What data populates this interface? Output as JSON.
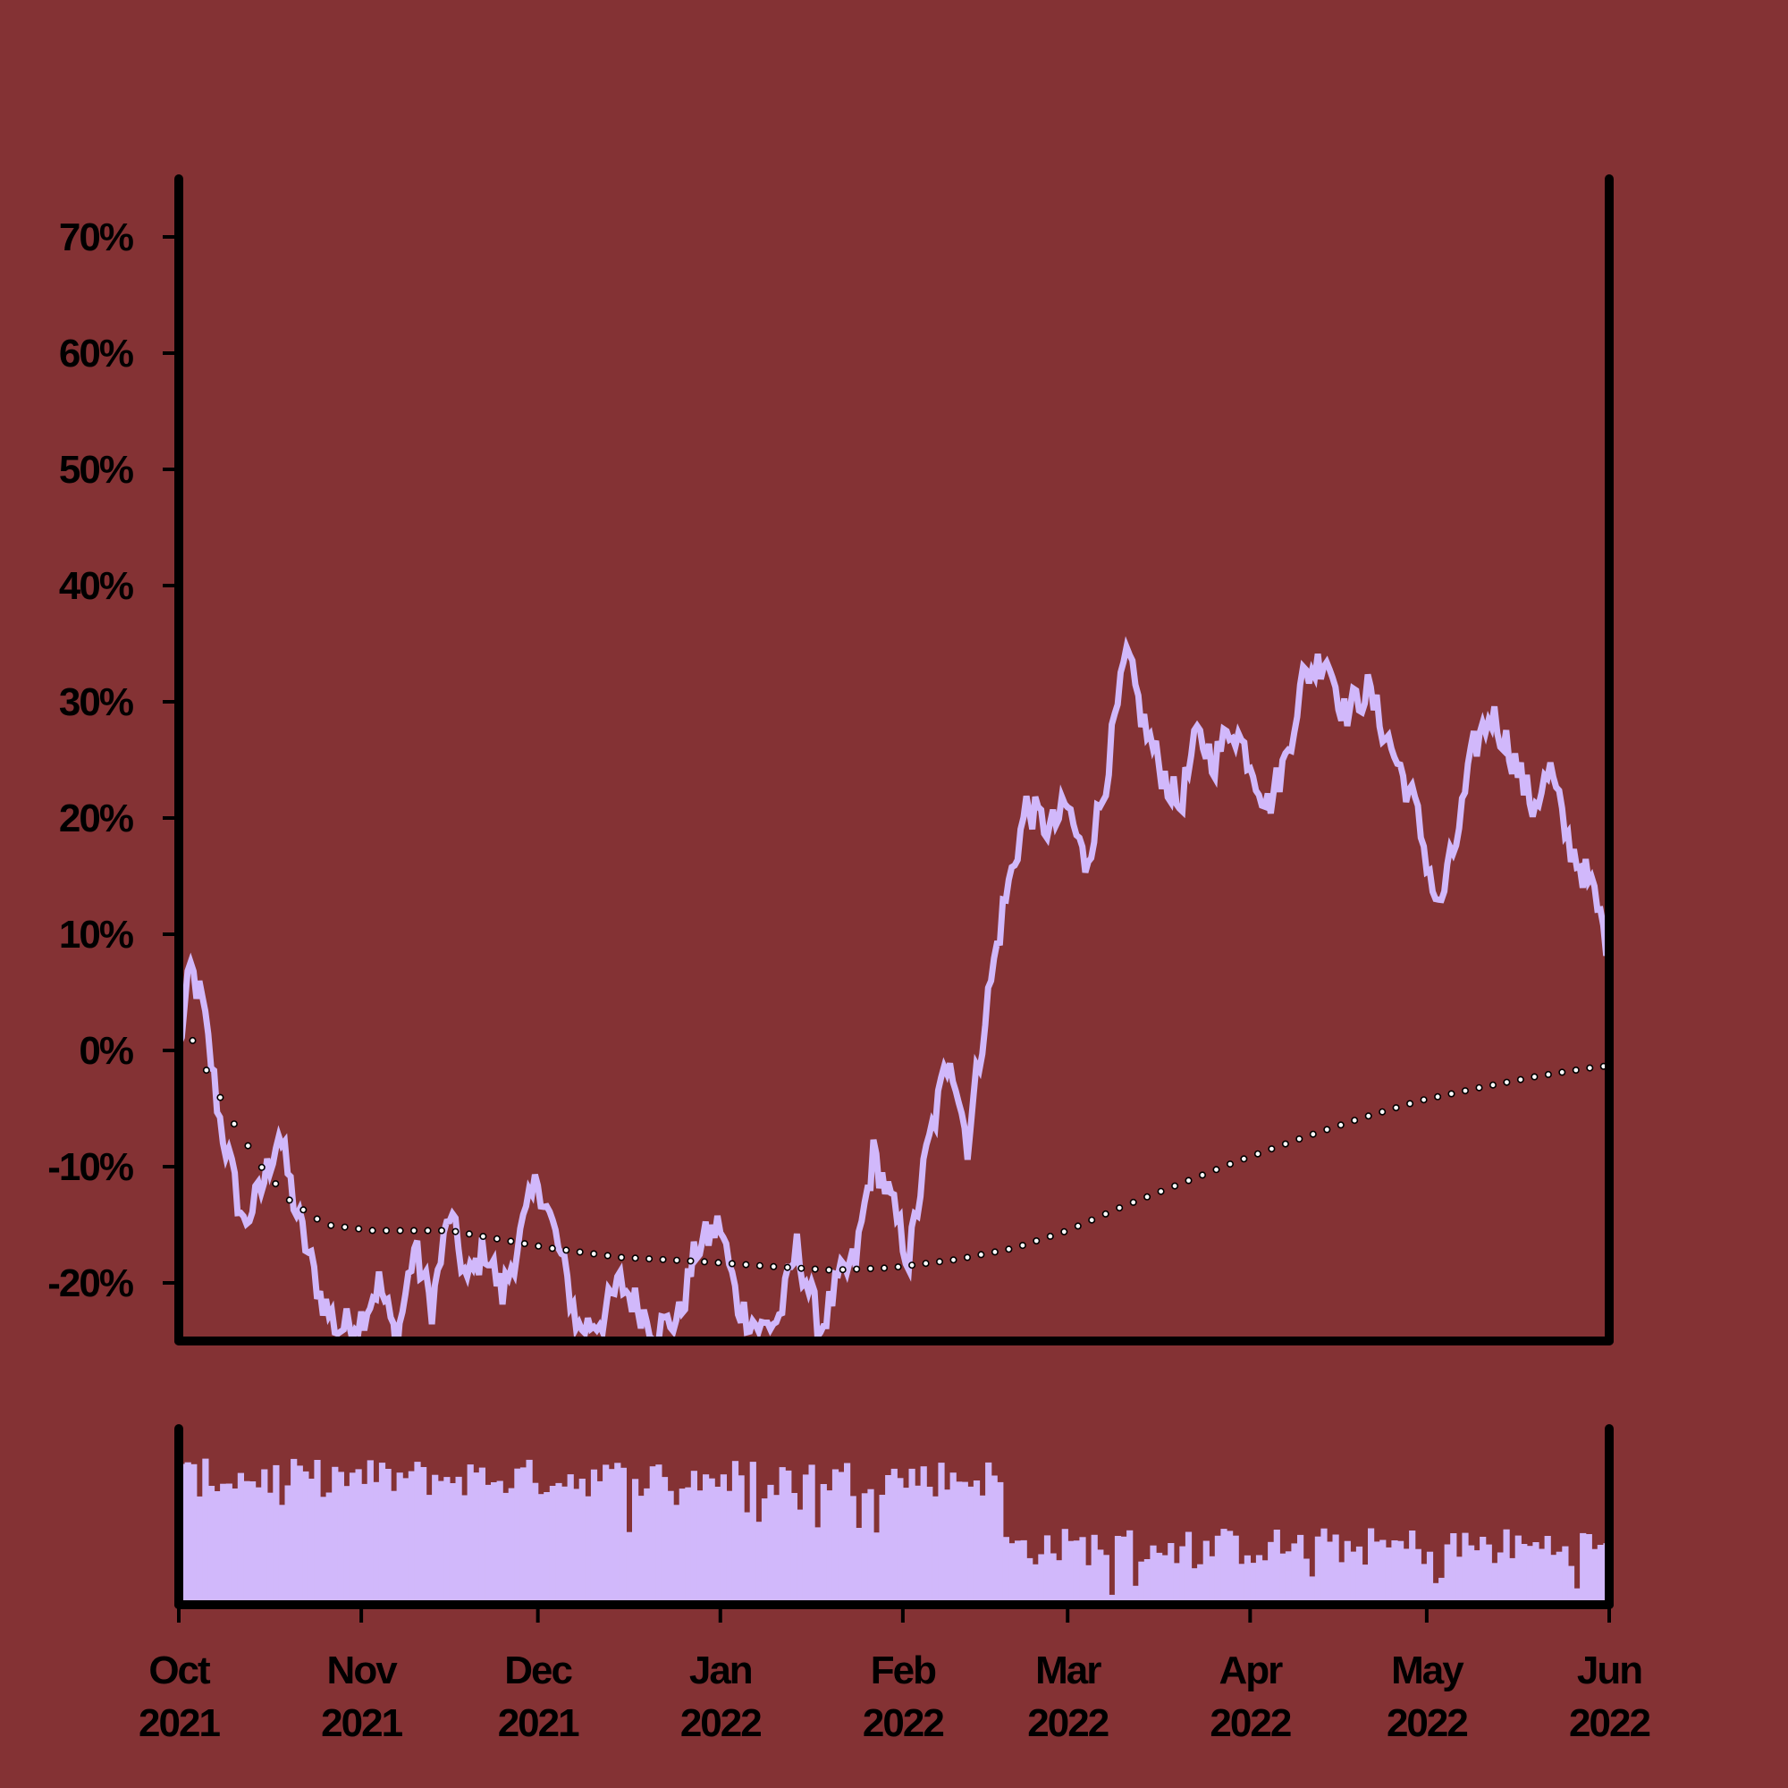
{
  "colors": {
    "background": "#843234",
    "series": "#d1b8fb",
    "axis": "#000000",
    "trend_marker_fill": "#ffffff",
    "trend_marker_stroke": "#000000"
  },
  "chart_data": [
    {
      "type": "line",
      "panel": "price",
      "x_start": "2021-10-01",
      "x_end": "2022-06-01",
      "ylim": [
        -25,
        75
      ],
      "y_ticks": [
        -20,
        -10,
        0,
        10,
        20,
        30,
        40,
        50,
        60,
        70
      ],
      "y_tick_labels": [
        "-20%",
        "-10%",
        "0%",
        "10%",
        "20%",
        "30%",
        "40%",
        "50%",
        "60%",
        "70%"
      ],
      "y_unit": "%",
      "grid": false,
      "series": [
        {
          "style": "line",
          "values_note": "daily % change from 2021-10-01, keyframes",
          "points": [
            [
              "2021-10-01",
              0
            ],
            [
              "2021-10-03",
              7
            ],
            [
              "2021-10-05",
              4
            ],
            [
              "2021-10-08",
              -6
            ],
            [
              "2021-10-12",
              -15
            ],
            [
              "2021-10-15",
              -12
            ],
            [
              "2021-10-18",
              -7
            ],
            [
              "2021-10-21",
              -14
            ],
            [
              "2021-10-25",
              -21
            ],
            [
              "2021-10-28",
              -24
            ],
            [
              "2021-11-01",
              -23
            ],
            [
              "2021-11-04",
              -20
            ],
            [
              "2021-11-07",
              -25
            ],
            [
              "2021-11-10",
              -17
            ],
            [
              "2021-11-13",
              -22
            ],
            [
              "2021-11-16",
              -14
            ],
            [
              "2021-11-19",
              -20
            ],
            [
              "2021-11-22",
              -17
            ],
            [
              "2021-11-25",
              -21
            ],
            [
              "2021-11-28",
              -16
            ],
            [
              "2021-12-01",
              -11
            ],
            [
              "2021-12-04",
              -16
            ],
            [
              "2021-12-08",
              -24
            ],
            [
              "2021-12-12",
              -23
            ],
            [
              "2021-12-15",
              -20
            ],
            [
              "2021-12-18",
              -22
            ],
            [
              "2021-12-21",
              -24
            ],
            [
              "2021-12-25",
              -23
            ],
            [
              "2021-12-28",
              -17
            ],
            [
              "2022-01-01",
              -15
            ],
            [
              "2022-01-04",
              -22
            ],
            [
              "2022-01-08",
              -24
            ],
            [
              "2022-01-11",
              -23
            ],
            [
              "2022-01-14",
              -17
            ],
            [
              "2022-01-18",
              -24
            ],
            [
              "2022-01-21",
              -20
            ],
            [
              "2022-01-24",
              -18
            ],
            [
              "2022-01-27",
              -9
            ],
            [
              "2022-01-30",
              -13
            ],
            [
              "2022-02-02",
              -18
            ],
            [
              "2022-02-05",
              -9
            ],
            [
              "2022-02-09",
              0
            ],
            [
              "2022-02-12",
              -8
            ],
            [
              "2022-02-15",
              3
            ],
            [
              "2022-02-18",
              12
            ],
            [
              "2022-02-22",
              21
            ],
            [
              "2022-02-26",
              19
            ],
            [
              "2022-03-01",
              21
            ],
            [
              "2022-03-04",
              16
            ],
            [
              "2022-03-07",
              22
            ],
            [
              "2022-03-11",
              34
            ],
            [
              "2022-03-14",
              28
            ],
            [
              "2022-03-17",
              24
            ],
            [
              "2022-03-20",
              21
            ],
            [
              "2022-03-23",
              27
            ],
            [
              "2022-03-26",
              25
            ],
            [
              "2022-03-29",
              28
            ],
            [
              "2022-04-01",
              25
            ],
            [
              "2022-04-04",
              21
            ],
            [
              "2022-04-07",
              25
            ],
            [
              "2022-04-10",
              32
            ],
            [
              "2022-04-14",
              34
            ],
            [
              "2022-04-17",
              29
            ],
            [
              "2022-04-21",
              31
            ],
            [
              "2022-04-25",
              26
            ],
            [
              "2022-04-29",
              21
            ],
            [
              "2022-05-03",
              12
            ],
            [
              "2022-05-06",
              18
            ],
            [
              "2022-05-09",
              26
            ],
            [
              "2022-05-12",
              29
            ],
            [
              "2022-05-15",
              26
            ],
            [
              "2022-05-19",
              21
            ],
            [
              "2022-05-22",
              24
            ],
            [
              "2022-05-25",
              18
            ],
            [
              "2022-05-29",
              14
            ],
            [
              "2022-06-02",
              7
            ],
            [
              "2022-06-05",
              4
            ],
            [
              "2022-06-08",
              10
            ],
            [
              "2022-06-12",
              18
            ],
            [
              "2022-06-15",
              14
            ],
            [
              "2022-06-18",
              17
            ],
            [
              "2022-06-22",
              13
            ],
            [
              "2022-06-26",
              7
            ],
            [
              "2022-06-29",
              0
            ],
            [
              "2022-07-01",
              -3
            ]
          ]
        },
        {
          "style": "dotted-trend",
          "points": [
            [
              "2021-10-01",
              3.5
            ],
            [
              "2021-10-05",
              -1
            ],
            [
              "2021-10-10",
              -6
            ],
            [
              "2021-10-15",
              -10
            ],
            [
              "2021-10-20",
              -13
            ],
            [
              "2021-10-26",
              -15
            ],
            [
              "2021-11-03",
              -15.5
            ],
            [
              "2021-11-10",
              -15.5
            ],
            [
              "2021-11-16",
              -15.5
            ],
            [
              "2021-11-24",
              -16.2
            ],
            [
              "2021-12-03",
              -17
            ],
            [
              "2021-12-15",
              -17.8
            ],
            [
              "2021-12-30",
              -18.2
            ],
            [
              "2022-01-10",
              -18.6
            ],
            [
              "2022-01-20",
              -18.9
            ],
            [
              "2022-01-30",
              -18.7
            ],
            [
              "2022-02-10",
              -18
            ],
            [
              "2022-02-20",
              -17
            ],
            [
              "2022-03-01",
              -15.5
            ],
            [
              "2022-03-10",
              -13.5
            ],
            [
              "2022-03-20",
              -11.5
            ],
            [
              "2022-03-30",
              -9.5
            ],
            [
              "2022-04-10",
              -7.5
            ],
            [
              "2022-04-20",
              -5.8
            ],
            [
              "2022-04-30",
              -4.3
            ],
            [
              "2022-05-10",
              -3.2
            ],
            [
              "2022-05-20",
              -2.2
            ],
            [
              "2022-05-30",
              -1.4
            ],
            [
              "2022-06-10",
              -1.1
            ],
            [
              "2022-06-20",
              -0.5
            ],
            [
              "2022-06-30",
              0
            ]
          ]
        }
      ]
    },
    {
      "type": "bar",
      "panel": "volume",
      "x_start": "2021-10-01",
      "x_end": "2022-06-01",
      "y_ticks": [],
      "segments": [
        {
          "from": "2021-10-01",
          "to": "2022-02-18",
          "level": 0.72
        },
        {
          "from": "2022-02-18",
          "to": "2022-07-01",
          "level": 0.33
        }
      ],
      "x_ticks": [
        {
          "month": "Oct",
          "year": "2021",
          "date": "2021-10-01"
        },
        {
          "month": "Nov",
          "year": "2021",
          "date": "2021-11-01"
        },
        {
          "month": "Dec",
          "year": "2021",
          "date": "2021-12-01"
        },
        {
          "month": "Jan",
          "year": "2022",
          "date": "2022-01-01"
        },
        {
          "month": "Feb",
          "year": "2022",
          "date": "2022-02-01"
        },
        {
          "month": "Mar",
          "year": "2022",
          "date": "2022-03-01"
        },
        {
          "month": "Apr",
          "year": "2022",
          "date": "2022-04-01"
        },
        {
          "month": "May",
          "year": "2022",
          "date": "2022-05-01"
        },
        {
          "month": "Jun",
          "year": "2022",
          "date": "2022-06-01"
        }
      ]
    }
  ]
}
